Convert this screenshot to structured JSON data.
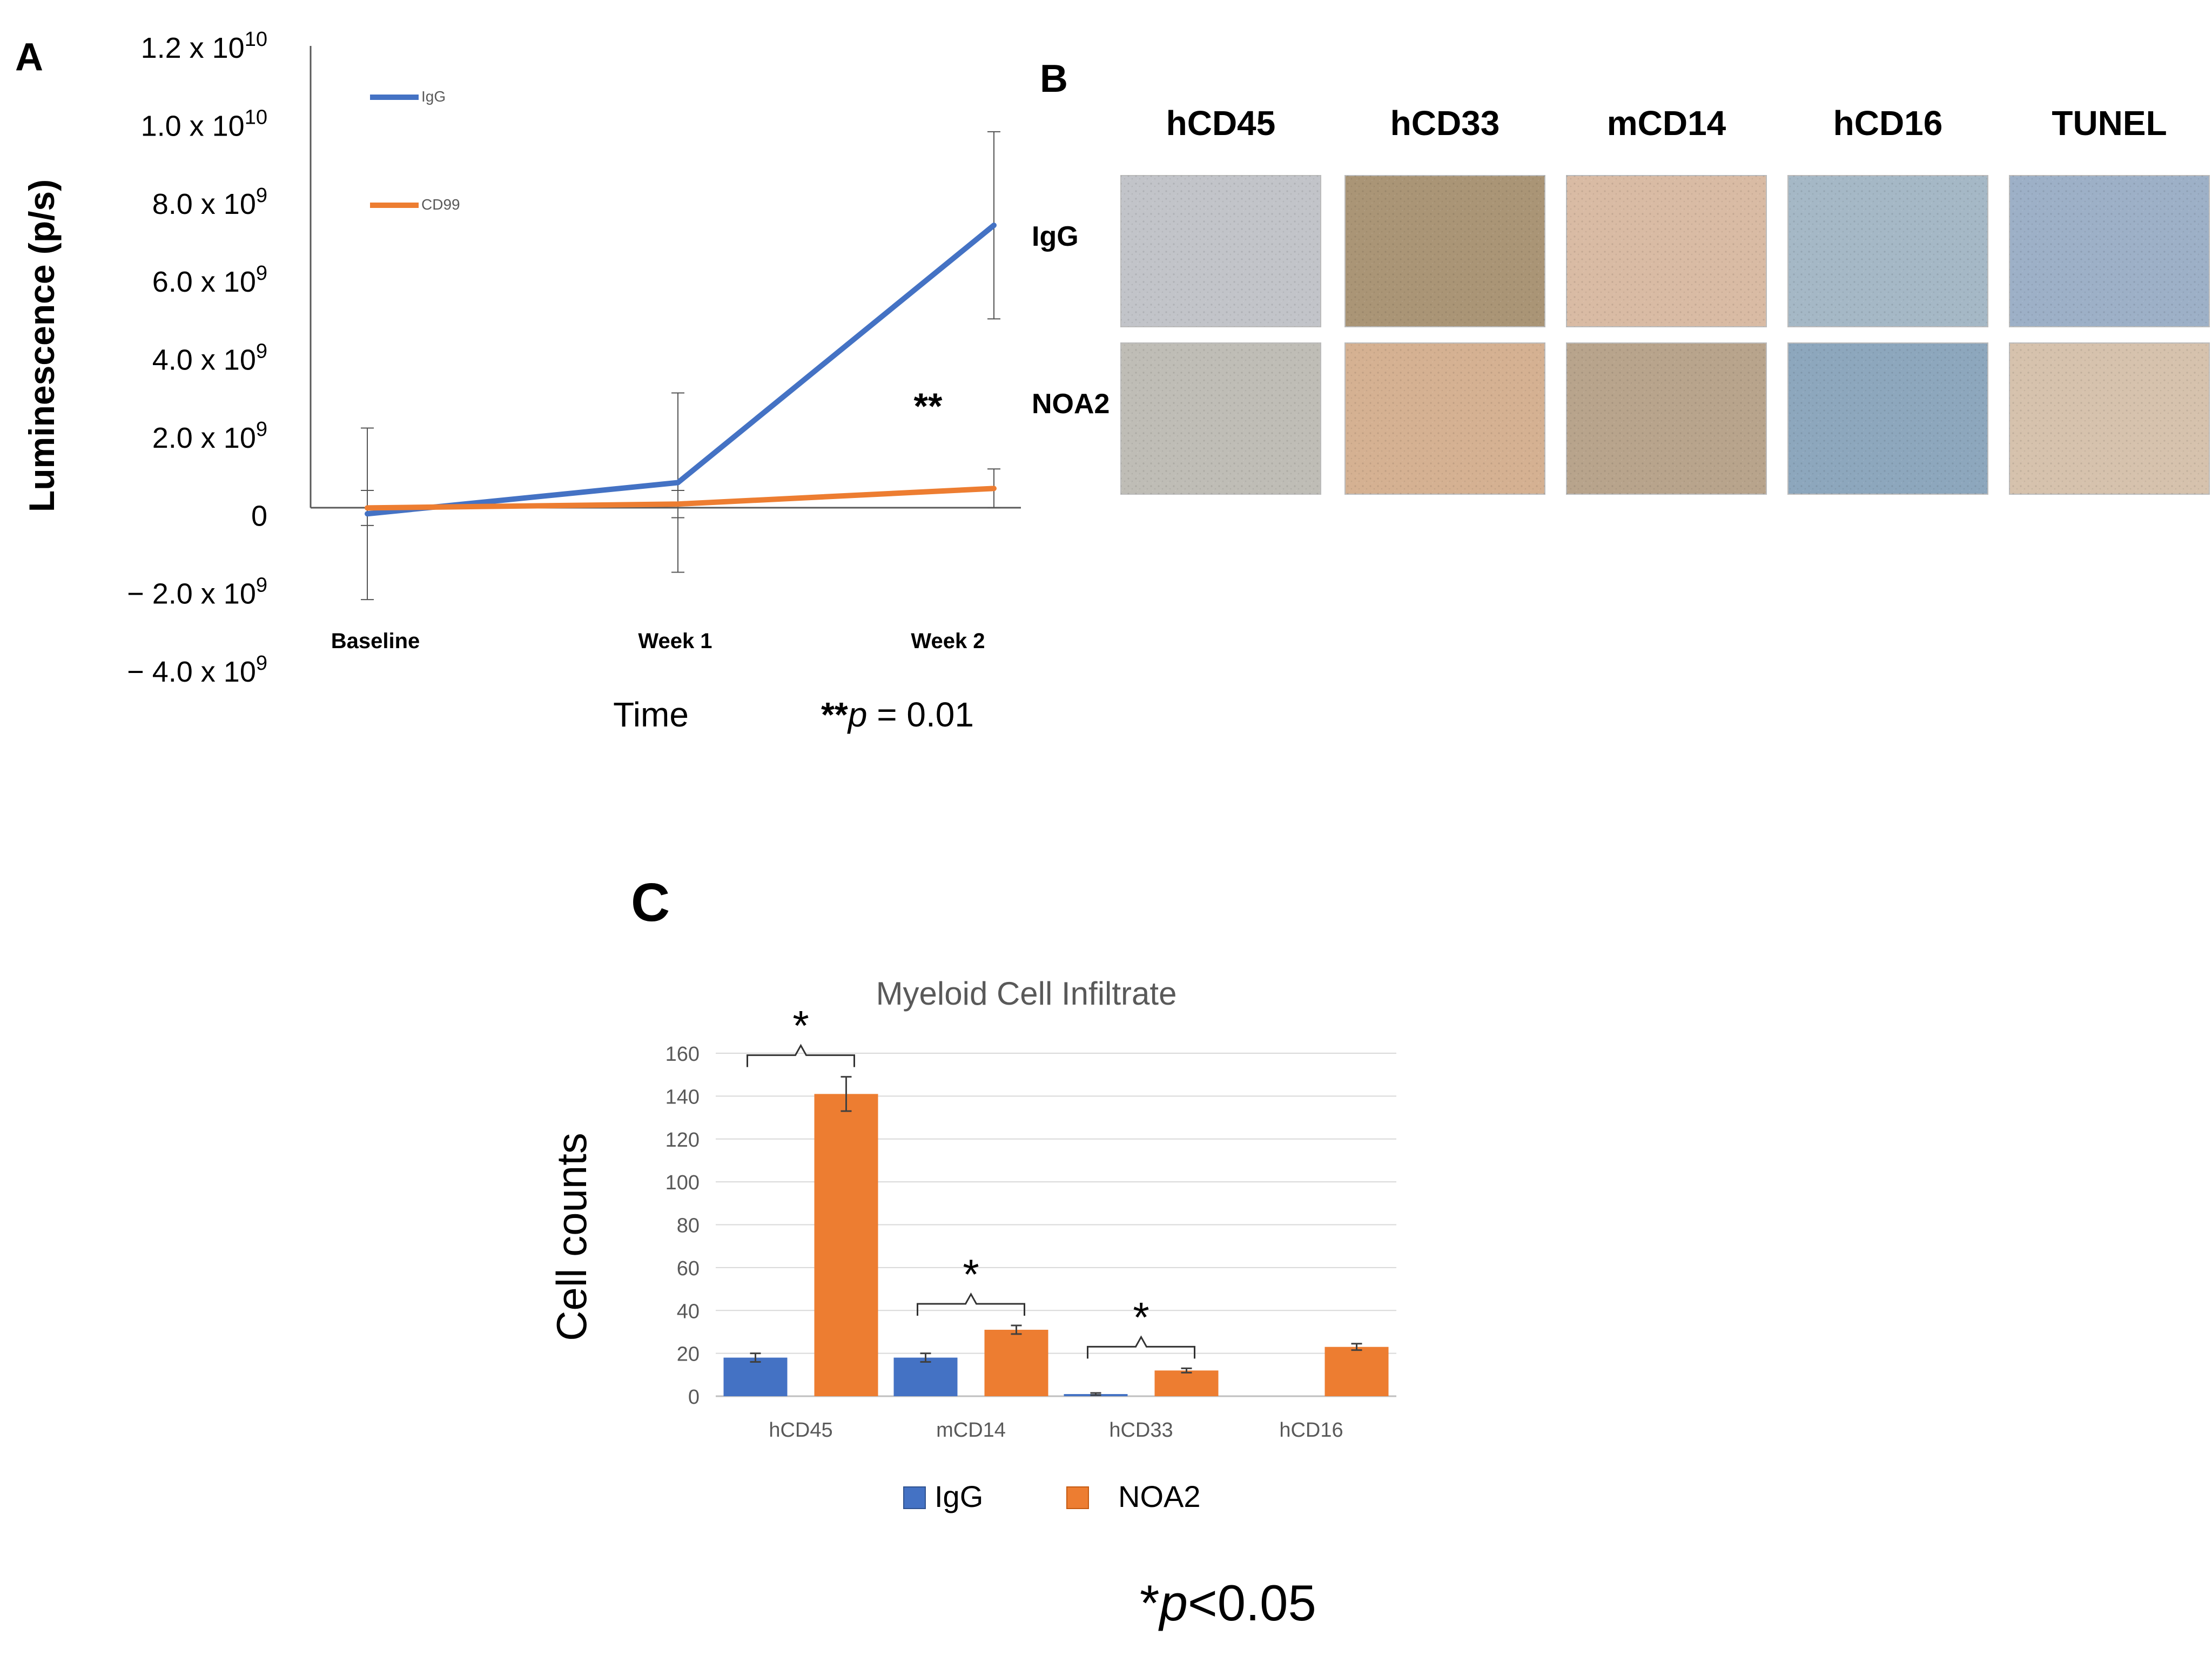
{
  "panels": {
    "A": "A",
    "B": "B",
    "C": "C"
  },
  "colors": {
    "igg_line": "#4472C4",
    "cd99_line": "#ED7D31",
    "bar_blue": "#4472C4",
    "bar_orange": "#ED7D31",
    "grid": "#D9D9D9",
    "axis": "#595959"
  },
  "chart_data": [
    {
      "type": "line",
      "title": "",
      "xlabel": "Time",
      "ylabel": "Luminescence (p/s)",
      "categories": [
        "Baseline",
        "Week 1",
        "Week 2"
      ],
      "ylim": [
        -4000000000,
        12000000000
      ],
      "y_tick_values": [
        -4000000000,
        -2000000000,
        0,
        2000000000,
        4000000000,
        6000000000,
        8000000000,
        10000000000,
        12000000000
      ],
      "y_tick_labels": [
        {
          "mant": "− 4.0 x 10",
          "exp": "9"
        },
        {
          "mant": "− 2.0 x 10",
          "exp": "9"
        },
        {
          "mant": "0",
          "exp": ""
        },
        {
          "mant": "2.0 x 10",
          "exp": "9"
        },
        {
          "mant": "4.0 x 10",
          "exp": "9"
        },
        {
          "mant": "6.0 x 10",
          "exp": "9"
        },
        {
          "mant": "8.0 x 10",
          "exp": "9"
        },
        {
          "mant": "1.0 x 10",
          "exp": "10"
        },
        {
          "mant": "1.2 x 10",
          "exp": "10"
        }
      ],
      "series": [
        {
          "name": "IgG",
          "values": [
            0,
            800000000,
            7400000000
          ],
          "err": [
            2200000000,
            2300000000,
            2400000000
          ]
        },
        {
          "name": "CD99",
          "values": [
            150000000,
            250000000,
            650000000
          ],
          "err": [
            450000000,
            350000000,
            500000000
          ]
        }
      ],
      "annotation": "**",
      "note_stars": "**",
      "note_p": "p",
      "note_rest": " = 0.01"
    },
    {
      "type": "bar",
      "title": "Myeloid Cell Infiltrate",
      "xlabel": "",
      "ylabel": "Cell counts",
      "categories": [
        "hCD45",
        "mCD14",
        "hCD33",
        "hCD16"
      ],
      "ylim": [
        0,
        160
      ],
      "y_ticks": [
        0,
        20,
        40,
        60,
        80,
        100,
        120,
        140,
        160
      ],
      "series": [
        {
          "name": "IgG",
          "values": [
            18,
            18,
            1,
            0
          ],
          "err": [
            2,
            2,
            0.5,
            0
          ]
        },
        {
          "name": "NOA2",
          "values": [
            141,
            31,
            12,
            23
          ],
          "err": [
            8,
            2,
            1,
            1.5
          ]
        }
      ],
      "significance": [
        "*",
        "*",
        "*",
        ""
      ],
      "note_star": "*",
      "note_p": "p",
      "note_rest": "<0.05"
    }
  ],
  "panel_b": {
    "columns": [
      "hCD45",
      "hCD33",
      "mCD14",
      "hCD16",
      "TUNEL"
    ],
    "rows": [
      "IgG",
      "NOA2"
    ],
    "images": [
      [
        "#c2c4c9",
        "#aa9576",
        "#d9bba4",
        "#a5b8c6",
        "#9db0c7"
      ],
      [
        "#bfbdb6",
        "#d5b192",
        "#b8a48c",
        "#8da7bd",
        "#d6c2ad"
      ]
    ]
  }
}
